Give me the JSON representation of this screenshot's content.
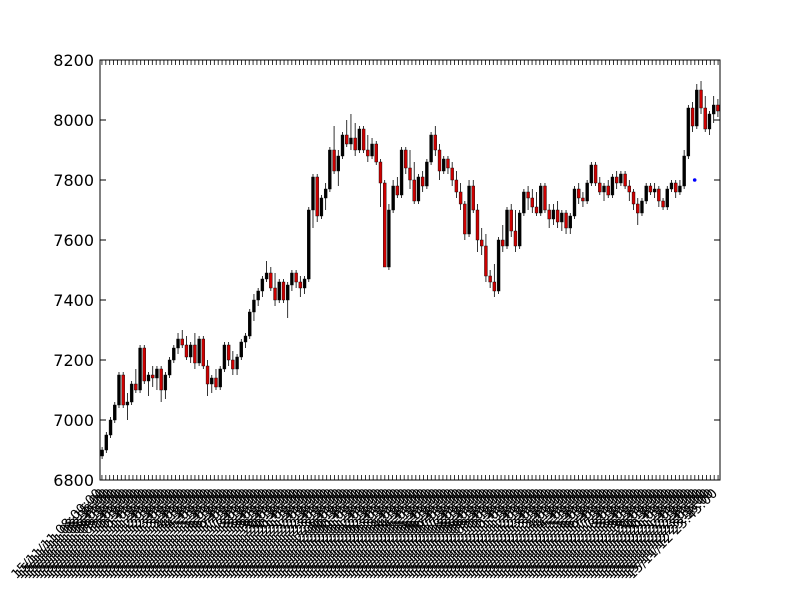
{
  "chart_data": {
    "type": "candlestick",
    "title": "",
    "xlabel": "",
    "ylabel": "",
    "ylim": [
      6800,
      8200
    ],
    "yticks": [
      6800,
      7000,
      7200,
      7400,
      7600,
      7800,
      8000,
      8200
    ],
    "grid": false,
    "colors": {
      "up": "#000000",
      "down": "#cc0000",
      "marker": "#0000ff",
      "axis": "#000000"
    },
    "candles": [
      {
        "o": 6880,
        "h": 6910,
        "l": 6870,
        "c": 6900
      },
      {
        "o": 6900,
        "h": 6960,
        "l": 6890,
        "c": 6950
      },
      {
        "o": 6950,
        "h": 7010,
        "l": 6940,
        "c": 7000
      },
      {
        "o": 7000,
        "h": 7060,
        "l": 6990,
        "c": 7050
      },
      {
        "o": 7050,
        "h": 7160,
        "l": 7040,
        "c": 7150
      },
      {
        "o": 7150,
        "h": 7160,
        "l": 7040,
        "c": 7050
      },
      {
        "o": 7050,
        "h": 7090,
        "l": 7000,
        "c": 7060
      },
      {
        "o": 7060,
        "h": 7130,
        "l": 7050,
        "c": 7120
      },
      {
        "o": 7120,
        "h": 7170,
        "l": 7090,
        "c": 7100
      },
      {
        "o": 7100,
        "h": 7250,
        "l": 7090,
        "c": 7240
      },
      {
        "o": 7240,
        "h": 7250,
        "l": 7120,
        "c": 7130
      },
      {
        "o": 7130,
        "h": 7160,
        "l": 7080,
        "c": 7150
      },
      {
        "o": 7150,
        "h": 7180,
        "l": 7110,
        "c": 7140
      },
      {
        "o": 7140,
        "h": 7180,
        "l": 7100,
        "c": 7170
      },
      {
        "o": 7170,
        "h": 7180,
        "l": 7060,
        "c": 7100
      },
      {
        "o": 7100,
        "h": 7160,
        "l": 7070,
        "c": 7150
      },
      {
        "o": 7150,
        "h": 7210,
        "l": 7140,
        "c": 7200
      },
      {
        "o": 7200,
        "h": 7250,
        "l": 7190,
        "c": 7240
      },
      {
        "o": 7240,
        "h": 7290,
        "l": 7220,
        "c": 7270
      },
      {
        "o": 7270,
        "h": 7300,
        "l": 7240,
        "c": 7250
      },
      {
        "o": 7250,
        "h": 7280,
        "l": 7200,
        "c": 7210
      },
      {
        "o": 7210,
        "h": 7260,
        "l": 7190,
        "c": 7250
      },
      {
        "o": 7250,
        "h": 7290,
        "l": 7170,
        "c": 7190
      },
      {
        "o": 7190,
        "h": 7280,
        "l": 7180,
        "c": 7270
      },
      {
        "o": 7270,
        "h": 7280,
        "l": 7170,
        "c": 7180
      },
      {
        "o": 7180,
        "h": 7200,
        "l": 7080,
        "c": 7120
      },
      {
        "o": 7120,
        "h": 7150,
        "l": 7090,
        "c": 7140
      },
      {
        "o": 7140,
        "h": 7170,
        "l": 7100,
        "c": 7110
      },
      {
        "o": 7110,
        "h": 7180,
        "l": 7100,
        "c": 7170
      },
      {
        "o": 7170,
        "h": 7260,
        "l": 7160,
        "c": 7250
      },
      {
        "o": 7250,
        "h": 7260,
        "l": 7180,
        "c": 7200
      },
      {
        "o": 7200,
        "h": 7230,
        "l": 7150,
        "c": 7170
      },
      {
        "o": 7170,
        "h": 7220,
        "l": 7150,
        "c": 7210
      },
      {
        "o": 7210,
        "h": 7270,
        "l": 7200,
        "c": 7260
      },
      {
        "o": 7260,
        "h": 7290,
        "l": 7240,
        "c": 7280
      },
      {
        "o": 7280,
        "h": 7370,
        "l": 7270,
        "c": 7360
      },
      {
        "o": 7360,
        "h": 7420,
        "l": 7330,
        "c": 7400
      },
      {
        "o": 7400,
        "h": 7440,
        "l": 7380,
        "c": 7430
      },
      {
        "o": 7430,
        "h": 7480,
        "l": 7410,
        "c": 7470
      },
      {
        "o": 7470,
        "h": 7530,
        "l": 7460,
        "c": 7490
      },
      {
        "o": 7490,
        "h": 7510,
        "l": 7430,
        "c": 7440
      },
      {
        "o": 7440,
        "h": 7490,
        "l": 7380,
        "c": 7400
      },
      {
        "o": 7400,
        "h": 7470,
        "l": 7390,
        "c": 7460
      },
      {
        "o": 7460,
        "h": 7470,
        "l": 7390,
        "c": 7400
      },
      {
        "o": 7400,
        "h": 7460,
        "l": 7340,
        "c": 7450
      },
      {
        "o": 7450,
        "h": 7500,
        "l": 7430,
        "c": 7490
      },
      {
        "o": 7490,
        "h": 7500,
        "l": 7440,
        "c": 7460
      },
      {
        "o": 7460,
        "h": 7480,
        "l": 7410,
        "c": 7440
      },
      {
        "o": 7440,
        "h": 7480,
        "l": 7420,
        "c": 7470
      },
      {
        "o": 7470,
        "h": 7710,
        "l": 7460,
        "c": 7700
      },
      {
        "o": 7700,
        "h": 7820,
        "l": 7640,
        "c": 7810
      },
      {
        "o": 7810,
        "h": 7820,
        "l": 7660,
        "c": 7680
      },
      {
        "o": 7680,
        "h": 7750,
        "l": 7670,
        "c": 7740
      },
      {
        "o": 7740,
        "h": 7790,
        "l": 7700,
        "c": 7770
      },
      {
        "o": 7770,
        "h": 7910,
        "l": 7760,
        "c": 7900
      },
      {
        "o": 7900,
        "h": 7980,
        "l": 7820,
        "c": 7830
      },
      {
        "o": 7830,
        "h": 7900,
        "l": 7780,
        "c": 7880
      },
      {
        "o": 7880,
        "h": 7960,
        "l": 7870,
        "c": 7950
      },
      {
        "o": 7950,
        "h": 8000,
        "l": 7910,
        "c": 7920
      },
      {
        "o": 7920,
        "h": 8020,
        "l": 7900,
        "c": 7940
      },
      {
        "o": 7940,
        "h": 7990,
        "l": 7880,
        "c": 7900
      },
      {
        "o": 7900,
        "h": 7980,
        "l": 7890,
        "c": 7970
      },
      {
        "o": 7970,
        "h": 7980,
        "l": 7890,
        "c": 7900
      },
      {
        "o": 7900,
        "h": 7950,
        "l": 7860,
        "c": 7880
      },
      {
        "o": 7880,
        "h": 7940,
        "l": 7870,
        "c": 7920
      },
      {
        "o": 7920,
        "h": 7930,
        "l": 7850,
        "c": 7860
      },
      {
        "o": 7860,
        "h": 7870,
        "l": 7710,
        "c": 7790
      },
      {
        "o": 7790,
        "h": 7800,
        "l": 7510,
        "c": 7510
      },
      {
        "o": 7510,
        "h": 7720,
        "l": 7500,
        "c": 7700
      },
      {
        "o": 7700,
        "h": 7800,
        "l": 7690,
        "c": 7780
      },
      {
        "o": 7780,
        "h": 7810,
        "l": 7740,
        "c": 7750
      },
      {
        "o": 7750,
        "h": 7910,
        "l": 7740,
        "c": 7900
      },
      {
        "o": 7900,
        "h": 7910,
        "l": 7820,
        "c": 7840
      },
      {
        "o": 7840,
        "h": 7900,
        "l": 7770,
        "c": 7800
      },
      {
        "o": 7800,
        "h": 7860,
        "l": 7720,
        "c": 7730
      },
      {
        "o": 7730,
        "h": 7820,
        "l": 7720,
        "c": 7810
      },
      {
        "o": 7810,
        "h": 7830,
        "l": 7760,
        "c": 7780
      },
      {
        "o": 7780,
        "h": 7870,
        "l": 7770,
        "c": 7860
      },
      {
        "o": 7860,
        "h": 7960,
        "l": 7850,
        "c": 7950
      },
      {
        "o": 7950,
        "h": 7980,
        "l": 7880,
        "c": 7900
      },
      {
        "o": 7900,
        "h": 7920,
        "l": 7800,
        "c": 7830
      },
      {
        "o": 7830,
        "h": 7880,
        "l": 7820,
        "c": 7870
      },
      {
        "o": 7870,
        "h": 7880,
        "l": 7820,
        "c": 7840
      },
      {
        "o": 7840,
        "h": 7860,
        "l": 7780,
        "c": 7800
      },
      {
        "o": 7800,
        "h": 7830,
        "l": 7740,
        "c": 7760
      },
      {
        "o": 7760,
        "h": 7790,
        "l": 7700,
        "c": 7720
      },
      {
        "o": 7720,
        "h": 7730,
        "l": 7600,
        "c": 7620
      },
      {
        "o": 7620,
        "h": 7800,
        "l": 7610,
        "c": 7780
      },
      {
        "o": 7780,
        "h": 7800,
        "l": 7690,
        "c": 7700
      },
      {
        "o": 7700,
        "h": 7720,
        "l": 7560,
        "c": 7600
      },
      {
        "o": 7600,
        "h": 7640,
        "l": 7550,
        "c": 7580
      },
      {
        "o": 7580,
        "h": 7620,
        "l": 7460,
        "c": 7480
      },
      {
        "o": 7480,
        "h": 7500,
        "l": 7440,
        "c": 7460
      },
      {
        "o": 7460,
        "h": 7520,
        "l": 7410,
        "c": 7430
      },
      {
        "o": 7430,
        "h": 7610,
        "l": 7420,
        "c": 7600
      },
      {
        "o": 7600,
        "h": 7650,
        "l": 7560,
        "c": 7580
      },
      {
        "o": 7580,
        "h": 7710,
        "l": 7570,
        "c": 7700
      },
      {
        "o": 7700,
        "h": 7720,
        "l": 7610,
        "c": 7630
      },
      {
        "o": 7630,
        "h": 7700,
        "l": 7560,
        "c": 7580
      },
      {
        "o": 7580,
        "h": 7700,
        "l": 7570,
        "c": 7690
      },
      {
        "o": 7690,
        "h": 7770,
        "l": 7680,
        "c": 7760
      },
      {
        "o": 7760,
        "h": 7780,
        "l": 7700,
        "c": 7740
      },
      {
        "o": 7740,
        "h": 7770,
        "l": 7690,
        "c": 7710
      },
      {
        "o": 7710,
        "h": 7760,
        "l": 7680,
        "c": 7690
      },
      {
        "o": 7690,
        "h": 7790,
        "l": 7680,
        "c": 7780
      },
      {
        "o": 7780,
        "h": 7790,
        "l": 7690,
        "c": 7700
      },
      {
        "o": 7700,
        "h": 7720,
        "l": 7640,
        "c": 7670
      },
      {
        "o": 7670,
        "h": 7720,
        "l": 7650,
        "c": 7700
      },
      {
        "o": 7700,
        "h": 7730,
        "l": 7640,
        "c": 7660
      },
      {
        "o": 7660,
        "h": 7700,
        "l": 7630,
        "c": 7690
      },
      {
        "o": 7690,
        "h": 7700,
        "l": 7620,
        "c": 7640
      },
      {
        "o": 7640,
        "h": 7690,
        "l": 7620,
        "c": 7680
      },
      {
        "o": 7680,
        "h": 7780,
        "l": 7670,
        "c": 7770
      },
      {
        "o": 7770,
        "h": 7790,
        "l": 7720,
        "c": 7740
      },
      {
        "o": 7740,
        "h": 7760,
        "l": 7710,
        "c": 7730
      },
      {
        "o": 7730,
        "h": 7800,
        "l": 7720,
        "c": 7790
      },
      {
        "o": 7790,
        "h": 7860,
        "l": 7780,
        "c": 7850
      },
      {
        "o": 7850,
        "h": 7860,
        "l": 7780,
        "c": 7790
      },
      {
        "o": 7790,
        "h": 7810,
        "l": 7750,
        "c": 7760
      },
      {
        "o": 7760,
        "h": 7790,
        "l": 7730,
        "c": 7780
      },
      {
        "o": 7780,
        "h": 7800,
        "l": 7740,
        "c": 7750
      },
      {
        "o": 7750,
        "h": 7820,
        "l": 7740,
        "c": 7810
      },
      {
        "o": 7810,
        "h": 7830,
        "l": 7770,
        "c": 7790
      },
      {
        "o": 7790,
        "h": 7830,
        "l": 7780,
        "c": 7820
      },
      {
        "o": 7820,
        "h": 7830,
        "l": 7770,
        "c": 7780
      },
      {
        "o": 7780,
        "h": 7800,
        "l": 7730,
        "c": 7760
      },
      {
        "o": 7760,
        "h": 7770,
        "l": 7700,
        "c": 7720
      },
      {
        "o": 7720,
        "h": 7740,
        "l": 7650,
        "c": 7690
      },
      {
        "o": 7690,
        "h": 7740,
        "l": 7680,
        "c": 7730
      },
      {
        "o": 7730,
        "h": 7790,
        "l": 7720,
        "c": 7780
      },
      {
        "o": 7780,
        "h": 7790,
        "l": 7750,
        "c": 7760
      },
      {
        "o": 7760,
        "h": 7790,
        "l": 7740,
        "c": 7770
      },
      {
        "o": 7770,
        "h": 7780,
        "l": 7710,
        "c": 7730
      },
      {
        "o": 7730,
        "h": 7740,
        "l": 7700,
        "c": 7710
      },
      {
        "o": 7710,
        "h": 7780,
        "l": 7700,
        "c": 7770
      },
      {
        "o": 7770,
        "h": 7800,
        "l": 7760,
        "c": 7790
      },
      {
        "o": 7790,
        "h": 7800,
        "l": 7740,
        "c": 7760
      },
      {
        "o": 7760,
        "h": 7800,
        "l": 7750,
        "c": 7780
      },
      {
        "o": 7780,
        "h": 7900,
        "l": 7770,
        "c": 7880
      },
      {
        "o": 7880,
        "h": 8050,
        "l": 7870,
        "c": 8040
      },
      {
        "o": 8040,
        "h": 8060,
        "l": 7960,
        "c": 7980
      },
      {
        "o": 7980,
        "h": 8120,
        "l": 7970,
        "c": 8100
      },
      {
        "o": 8100,
        "h": 8130,
        "l": 8020,
        "c": 8040
      },
      {
        "o": 8040,
        "h": 8080,
        "l": 7960,
        "c": 7970
      },
      {
        "o": 7970,
        "h": 8030,
        "l": 7950,
        "c": 8020
      },
      {
        "o": 8020,
        "h": 8080,
        "l": 7990,
        "c": 8050
      },
      {
        "o": 8050,
        "h": 8070,
        "l": 8010,
        "c": 8030
      }
    ],
    "marker": {
      "index": 140.5,
      "value": 7800
    },
    "xtick_labels": [
      "15/11/11 08:00:00",
      "15/11/11 08:15:00",
      "15/11/11 08:30:00",
      "15/11/11 08:45:00",
      "15/11/11 09:00:00",
      "15/11/11 09:15:00",
      "15/11/11 09:30:00",
      "15/11/11 09:45:00",
      "15/11/11 10:00:00",
      "15/11/11 10:15:00",
      "15/11/11 10:30:00",
      "15/11/11 10:45:00",
      "15/11/11 11:00:00",
      "15/11/11 11:15:00",
      "15/11/11 11:30:00",
      "15/11/11 11:45:00",
      "15/11/11 12:00:00",
      "15/11/11 12:15:00",
      "15/11/11 12:30:00",
      "15/11/11 12:45:00",
      "15/11/11 13:00:00",
      "15/11/11 13:15:00",
      "15/11/11 13:30:00",
      "15/11/11 13:45:00",
      "15/11/11 14:00:00",
      "15/11/11 14:15:00",
      "15/11/11 14:30:00",
      "15/11/11 14:45:00",
      "15/11/11 15:00:00",
      "15/11/11 15:15:00",
      "15/11/11 15:30:00",
      "15/11/11 15:45:00",
      "15/11/11 16:00:00",
      "15/11/11 16:15:00",
      "15/11/11 16:30:00",
      "15/11/11 16:45:00",
      "15/11/11 17:00:00",
      "15/11/11 17:15:00",
      "15/11/11 17:30:00",
      "15/11/11 17:45:00",
      "15/11/11 18:00:00",
      "15/11/11 18:15:00",
      "15/11/11 18:30:00",
      "15/11/11 18:45:00",
      "15/11/11 19:00:00",
      "15/11/11 19:15:00",
      "15/11/11 19:30:00",
      "15/11/11 19:45:00",
      "15/11/11 20:00:00",
      "15/11/11 20:15:00",
      "15/11/11 20:30:00",
      "15/11/11 20:45:00",
      "15/11/11 21:00:00",
      "15/11/11 21:15:00",
      "15/11/11 21:30:00",
      "15/11/11 21:45:00",
      "15/11/11 22:00:00",
      "15/11/11 22:15:00",
      "15/11/11 22:30:00",
      "15/11/11 22:45:00",
      "15/11/11 23:00:00",
      "15/11/11 23:15:00",
      "15/11/11 23:30:00",
      "15/11/11 23:45:00",
      "15/11/12 00:00:00",
      "15/11/12 00:15:00",
      "15/11/12 00:30:00",
      "15/11/12 00:45:00",
      "15/11/12 01:00:00",
      "15/11/12 01:15:00",
      "15/11/12 01:30:00",
      "15/11/12 01:45:00",
      "15/11/12 02:00:00",
      "15/11/12 02:15:00",
      "15/11/12 02:30:00",
      "15/11/12 02:45:00",
      "15/11/12 03:00:00",
      "15/11/12 03:15:00",
      "15/11/12 03:30:00",
      "15/11/12 03:45:00",
      "15/11/12 04:00:00",
      "15/11/12 04:15:00",
      "15/11/12 04:30:00",
      "15/11/12 04:45:00",
      "15/11/12 05:00:00",
      "15/11/12 05:15:00",
      "15/11/12 05:30:00",
      "15/11/12 05:45:00",
      "15/11/12 06:00:00",
      "15/11/12 06:15:00",
      "15/11/12 06:30:00",
      "15/11/12 06:45:00",
      "15/11/12 07:00:00",
      "15/11/12 07:15:00",
      "15/11/12 07:30:00",
      "15/11/12 07:45:00",
      "15/11/12 08:00:00",
      "15/11/12 08:15:00",
      "15/11/12 08:30:00",
      "15/11/12 08:45:00",
      "15/11/12 09:00:00",
      "15/11/12 09:15:00",
      "15/11/12 09:30:00",
      "15/11/12 09:45:00",
      "15/11/12 10:00:00",
      "15/11/12 10:15:00",
      "15/11/12 10:30:00",
      "15/11/12 10:45:00",
      "15/11/12 11:00:00",
      "15/11/12 11:15:00",
      "15/11/12 11:30:00",
      "15/11/12 11:45:00",
      "15/11/12 12:00:00",
      "15/11/12 12:15:00",
      "15/11/12 12:30:00",
      "15/11/12 12:45:00",
      "15/11/12 13:00:00",
      "15/11/12 13:15:00",
      "15/11/12 13:30:00",
      "15/11/12 13:45:00",
      "15/11/12 14:00:00",
      "15/11/12 14:15:00",
      "15/11/12 14:30:00",
      "15/11/12 14:45:00",
      "15/11/12 15:00:00",
      "15/11/12 15:15:00",
      "15/11/12 15:30:00",
      "15/11/12 15:45:00",
      "15/11/12 16:00:00",
      "15/11/12 16:15:00",
      "15/11/12 16:30:00",
      "15/11/12 16:45:00",
      "15/11/12 17:00:00",
      "15/11/12 17:15:00",
      "15/11/12 17:30:00",
      "15/11/12 17:45:00",
      "15/11/12 18:00:00",
      "15/11/12 18:15:00",
      "15/11/12 18:30:00",
      "15/11/12 18:45:00",
      "15/11/12 19:00:00",
      "15/11/12 19:15:00",
      "15/11/12 19:30:00",
      "15/11/12 19:45:00",
      "15/11/12 20:00:00",
      "15/11/12 20:15:00",
      "15/11/12 20:30:00",
      "15/11/12 20:45:00",
      "15/11/12 21:00:00",
      "15/11/12 21:15:00",
      "15/11/12 21:30:00",
      "15/11/12 21:45:00",
      "15/11/12 22:00:00",
      "15/11/12 22:15:00",
      "15/11/12 22:30:00",
      "15/11/12 22:45:00",
      "15/11/12 23:00:00",
      "15/11/12 23:15:00",
      "15/11/12 23:30:00",
      "15/11/12 23:45:00"
    ]
  }
}
